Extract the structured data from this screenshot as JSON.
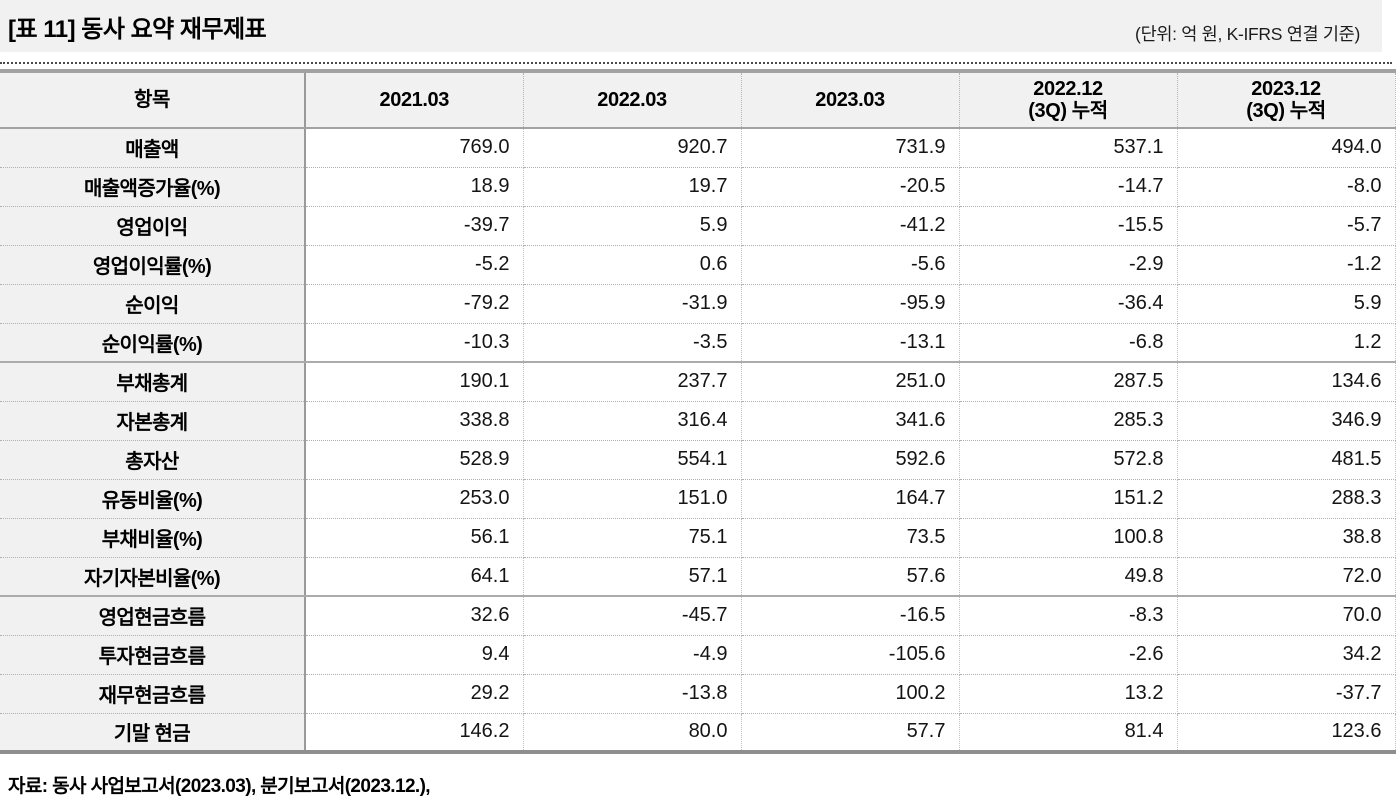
{
  "page": {
    "title": "[표 11] 동사 요약 재무제표",
    "unit_note": "(단위: 억 원, K-IFRS 연결 기준)",
    "source_note": "자료: 동사 사업보고서(2023.03), 분기보고서(2023.12.),"
  },
  "colors": {
    "band_background": "#f1f1f1",
    "header_background": "#f1f1f1",
    "section_line": "#a2a2a2"
  },
  "table": {
    "columns": [
      "항목",
      "2021.03",
      "2022.03",
      "2023.03",
      "2022.12\n(3Q) 누적",
      "2023.12\n(3Q) 누적"
    ],
    "rows": [
      {
        "label": "매출액",
        "values": [
          "769.0",
          "920.7",
          "731.9",
          "537.1",
          "494.0"
        ],
        "group_end": false
      },
      {
        "label": "매출액증가율(%)",
        "values": [
          "18.9",
          "19.7",
          "-20.5",
          "-14.7",
          "-8.0"
        ],
        "group_end": false
      },
      {
        "label": "영업이익",
        "values": [
          "-39.7",
          "5.9",
          "-41.2",
          "-15.5",
          "-5.7"
        ],
        "group_end": false
      },
      {
        "label": "영업이익률(%)",
        "values": [
          "-5.2",
          "0.6",
          "-5.6",
          "-2.9",
          "-1.2"
        ],
        "group_end": false
      },
      {
        "label": "순이익",
        "values": [
          "-79.2",
          "-31.9",
          "-95.9",
          "-36.4",
          "5.9"
        ],
        "group_end": false
      },
      {
        "label": "순이익률(%)",
        "values": [
          "-10.3",
          "-3.5",
          "-13.1",
          "-6.8",
          "1.2"
        ],
        "group_end": true
      },
      {
        "label": "부채총계",
        "values": [
          "190.1",
          "237.7",
          "251.0",
          "287.5",
          "134.6"
        ],
        "group_end": false
      },
      {
        "label": "자본총계",
        "values": [
          "338.8",
          "316.4",
          "341.6",
          "285.3",
          "346.9"
        ],
        "group_end": false
      },
      {
        "label": "총자산",
        "values": [
          "528.9",
          "554.1",
          "592.6",
          "572.8",
          "481.5"
        ],
        "group_end": false
      },
      {
        "label": "유동비율(%)",
        "values": [
          "253.0",
          "151.0",
          "164.7",
          "151.2",
          "288.3"
        ],
        "group_end": false
      },
      {
        "label": "부채비율(%)",
        "values": [
          "56.1",
          "75.1",
          "73.5",
          "100.8",
          "38.8"
        ],
        "group_end": false
      },
      {
        "label": "자기자본비율(%)",
        "values": [
          "64.1",
          "57.1",
          "57.6",
          "49.8",
          "72.0"
        ],
        "group_end": true
      },
      {
        "label": "영업현금흐름",
        "values": [
          "32.6",
          "-45.7",
          "-16.5",
          "-8.3",
          "70.0"
        ],
        "group_end": false
      },
      {
        "label": "투자현금흐름",
        "values": [
          "9.4",
          "-4.9",
          "-105.6",
          "-2.6",
          "34.2"
        ],
        "group_end": false
      },
      {
        "label": "재무현금흐름",
        "values": [
          "29.2",
          "-13.8",
          "100.2",
          "13.2",
          "-37.7"
        ],
        "group_end": false
      },
      {
        "label": "기말 현금",
        "values": [
          "146.2",
          "80.0",
          "57.7",
          "81.4",
          "123.6"
        ],
        "group_end": false
      }
    ]
  }
}
